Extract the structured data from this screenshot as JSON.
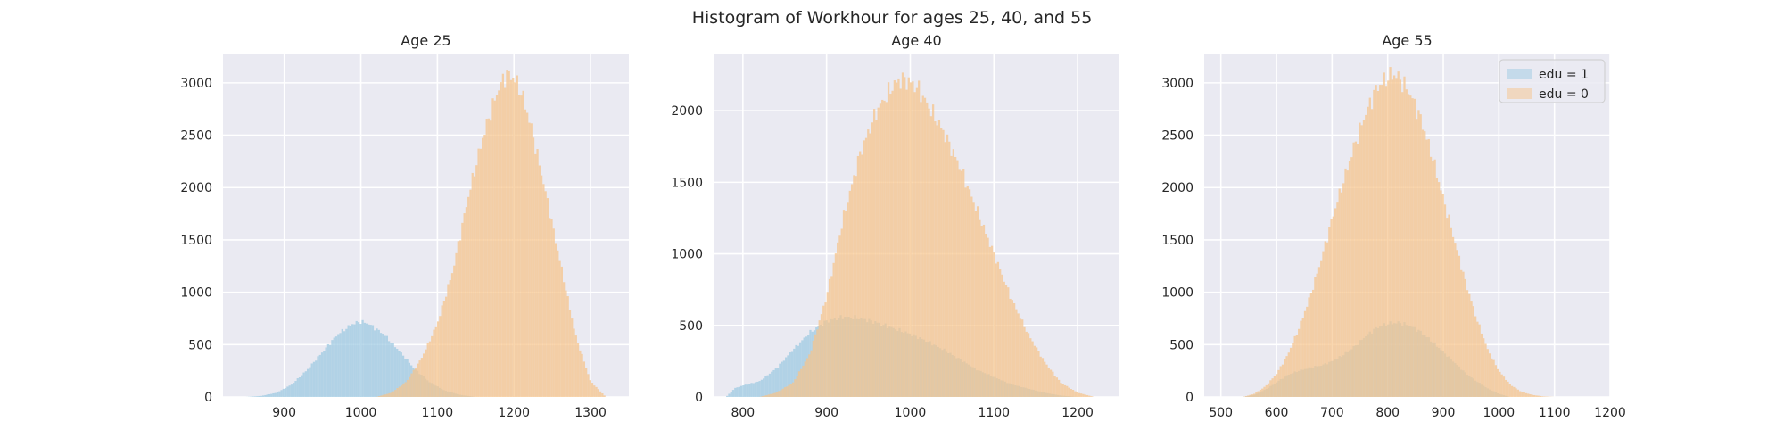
{
  "figure": {
    "title": "Histogram of Workhour for ages 25, 40, and 55"
  },
  "colors": {
    "background": "#eaeaf2",
    "grid": "#ffffff",
    "edu1": "#9ecae1",
    "edu0": "#f5c48c"
  },
  "chart_data": [
    {
      "type": "histogram",
      "title": "Age 25",
      "xlabel": "",
      "ylabel": "",
      "xlim": [
        820,
        1350
      ],
      "ylim": [
        0,
        3280
      ],
      "xticks": [
        900,
        1000,
        1100,
        1200,
        1300
      ],
      "yticks": [
        0,
        500,
        1000,
        1500,
        2000,
        2500,
        3000
      ],
      "grid": true,
      "series": [
        {
          "name": "edu = 1",
          "color": "#9ecae1",
          "opacity": 0.75,
          "x": [
            850,
            870,
            890,
            910,
            930,
            950,
            970,
            990,
            1000,
            1010,
            1030,
            1050,
            1070,
            1090,
            1110,
            1130,
            1150
          ],
          "y": [
            0,
            10,
            40,
            120,
            260,
            430,
            600,
            700,
            720,
            700,
            600,
            440,
            270,
            140,
            60,
            20,
            0
          ]
        },
        {
          "name": "edu = 0",
          "color": "#f5c48c",
          "opacity": 0.75,
          "x": [
            1020,
            1040,
            1060,
            1080,
            1100,
            1120,
            1140,
            1160,
            1180,
            1190,
            1200,
            1210,
            1220,
            1240,
            1260,
            1280,
            1300,
            1320
          ],
          "y": [
            0,
            40,
            150,
            380,
            700,
            1200,
            1900,
            2500,
            2950,
            3080,
            3050,
            2900,
            2650,
            2000,
            1300,
            600,
            150,
            0
          ]
        }
      ]
    },
    {
      "type": "histogram",
      "title": "Age 40",
      "xlabel": "",
      "ylabel": "",
      "xlim": [
        765,
        1250
      ],
      "ylim": [
        0,
        2400
      ],
      "xticks": [
        800,
        900,
        1000,
        1100,
        1200
      ],
      "yticks": [
        0,
        500,
        1000,
        1500,
        2000
      ],
      "grid": true,
      "series": [
        {
          "name": "edu = 1",
          "color": "#9ecae1",
          "opacity": 0.75,
          "x": [
            780,
            790,
            800,
            820,
            840,
            860,
            880,
            900,
            920,
            940,
            960,
            980,
            1000,
            1020,
            1040,
            1060,
            1080,
            1100,
            1120,
            1140,
            1160,
            1180,
            1200
          ],
          "y": [
            0,
            60,
            80,
            110,
            200,
            330,
            450,
            530,
            560,
            550,
            520,
            480,
            440,
            390,
            330,
            260,
            190,
            140,
            90,
            60,
            30,
            10,
            0
          ]
        },
        {
          "name": "edu = 0",
          "color": "#f5c48c",
          "opacity": 0.75,
          "x": [
            820,
            840,
            860,
            880,
            900,
            920,
            940,
            960,
            980,
            990,
            1000,
            1010,
            1020,
            1040,
            1060,
            1080,
            1100,
            1120,
            1140,
            1160,
            1180,
            1200,
            1220
          ],
          "y": [
            0,
            30,
            100,
            300,
            700,
            1250,
            1700,
            2000,
            2180,
            2220,
            2200,
            2150,
            2050,
            1850,
            1600,
            1300,
            1000,
            700,
            450,
            250,
            100,
            30,
            0
          ]
        }
      ]
    },
    {
      "type": "histogram",
      "title": "Age 55",
      "xlabel": "",
      "ylabel": "",
      "xlim": [
        470,
        1200
      ],
      "ylim": [
        0,
        3280
      ],
      "xticks": [
        500,
        600,
        700,
        800,
        900,
        1000,
        1100,
        1200
      ],
      "yticks": [
        0,
        500,
        1000,
        1500,
        2000,
        2500,
        3000
      ],
      "grid": true,
      "legend": "top-right",
      "series": [
        {
          "name": "edu = 1",
          "color": "#9ecae1",
          "opacity": 0.75,
          "x": [
            540,
            560,
            580,
            600,
            620,
            640,
            660,
            680,
            700,
            720,
            740,
            760,
            780,
            800,
            820,
            840,
            860,
            880,
            900,
            920,
            940,
            960,
            980,
            1000,
            1020
          ],
          "y": [
            0,
            20,
            70,
            140,
            210,
            250,
            280,
            300,
            340,
            400,
            480,
            580,
            660,
            700,
            710,
            680,
            620,
            530,
            430,
            330,
            230,
            150,
            80,
            30,
            0
          ]
        },
        {
          "name": "edu = 0",
          "color": "#f5c48c",
          "opacity": 0.75,
          "x": [
            540,
            560,
            580,
            600,
            620,
            640,
            660,
            680,
            700,
            720,
            740,
            760,
            780,
            800,
            810,
            820,
            840,
            860,
            880,
            900,
            920,
            940,
            960,
            980,
            1000,
            1020,
            1040,
            1060,
            1080,
            1100
          ],
          "y": [
            0,
            30,
            100,
            220,
            400,
            650,
            950,
            1300,
            1700,
            2050,
            2400,
            2700,
            2950,
            3050,
            3080,
            3050,
            2900,
            2650,
            2300,
            1900,
            1500,
            1100,
            750,
            450,
            250,
            120,
            50,
            20,
            5,
            0
          ]
        }
      ]
    }
  ]
}
